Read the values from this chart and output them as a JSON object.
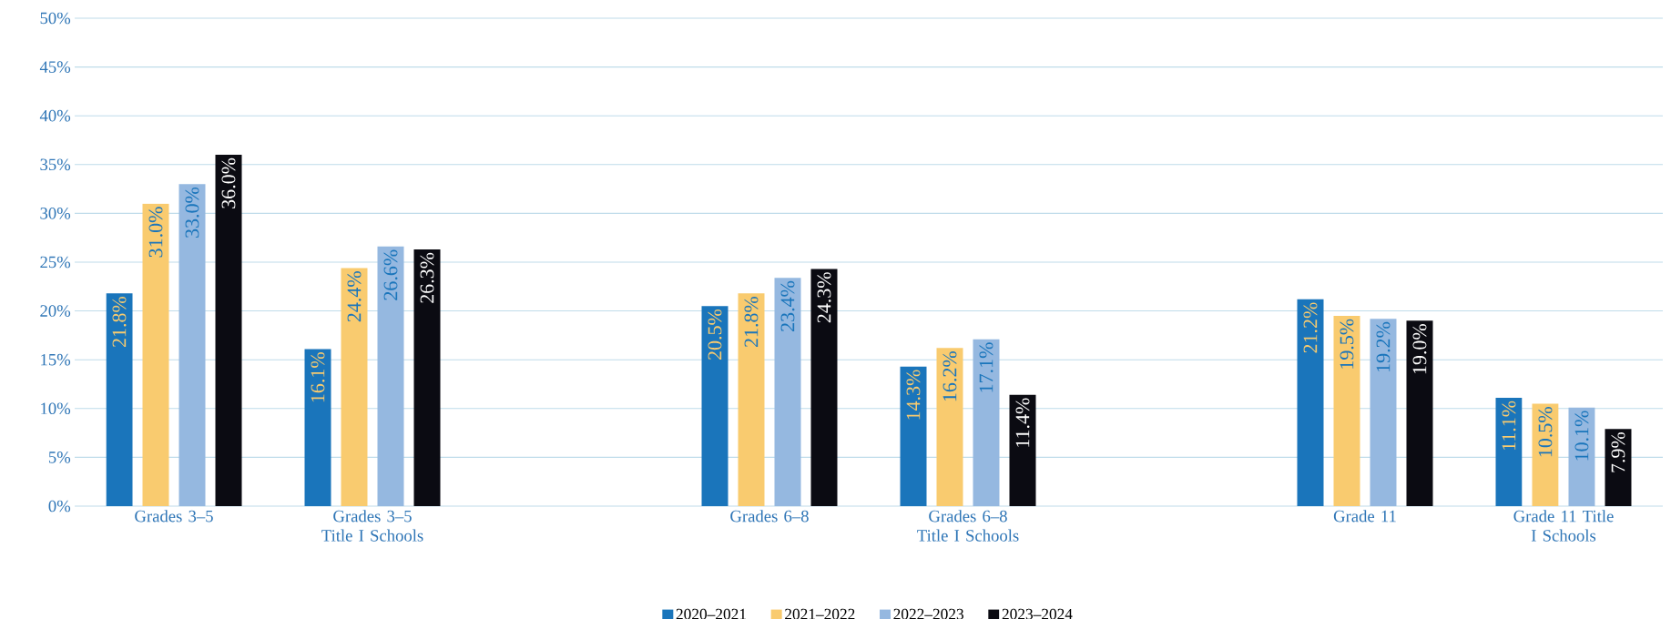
{
  "chart_data": {
    "type": "bar",
    "categories": [
      "Grades 3–5",
      "Grades 3–5 Title I Schools",
      null,
      "Grades 6–8",
      "Grades 6–8 Title I Schools",
      null,
      "Grade 11",
      "Grade 11 Title I Schools"
    ],
    "series": [
      {
        "name": "2020–2021",
        "color": "#1a75bb",
        "values": [
          21.8,
          16.1,
          null,
          20.5,
          14.3,
          null,
          21.2,
          11.1
        ],
        "value_labels": [
          "21.8%",
          "16.1%",
          null,
          "20.5%",
          "14.3%",
          null,
          "21.2%",
          "11.1%"
        ]
      },
      {
        "name": "2021–2022",
        "color": "#f9cb6f",
        "values": [
          31.0,
          24.4,
          null,
          21.8,
          16.2,
          null,
          19.5,
          10.5
        ],
        "value_labels": [
          "31.0%",
          "24.4%",
          null,
          "21.8%",
          "16.2%",
          null,
          "19.5%",
          "10.5%"
        ]
      },
      {
        "name": "2022–2023",
        "color": "#95b8e0",
        "values": [
          33.0,
          26.6,
          null,
          23.4,
          17.1,
          null,
          19.2,
          10.1
        ],
        "value_labels": [
          "33.0%",
          "26.6%",
          null,
          "23.4%",
          "17.1%",
          null,
          "19.2%",
          "10.1%"
        ]
      },
      {
        "name": "2023–2024",
        "color": "#0b0b12",
        "values": [
          36.0,
          26.3,
          null,
          24.3,
          11.4,
          null,
          19.0,
          7.9
        ],
        "value_labels": [
          "36.0%",
          "26.3%",
          null,
          "24.3%",
          "11.4%",
          null,
          "19.0%",
          "7.9%"
        ]
      }
    ],
    "ylim": [
      0,
      50
    ],
    "yticks": [
      {
        "value": 0,
        "label": "0%"
      },
      {
        "value": 5,
        "label": "5%"
      },
      {
        "value": 10,
        "label": "10%"
      },
      {
        "value": 15,
        "label": "15%"
      },
      {
        "value": 20,
        "label": "20%"
      },
      {
        "value": 25,
        "label": "25%"
      },
      {
        "value": 30,
        "label": "30%"
      },
      {
        "value": 35,
        "label": "35%"
      },
      {
        "value": 40,
        "label": "40%"
      },
      {
        "value": 45,
        "label": "45%"
      },
      {
        "value": 50,
        "label": "50%"
      }
    ],
    "grid": "y",
    "legend": "bottom"
  }
}
